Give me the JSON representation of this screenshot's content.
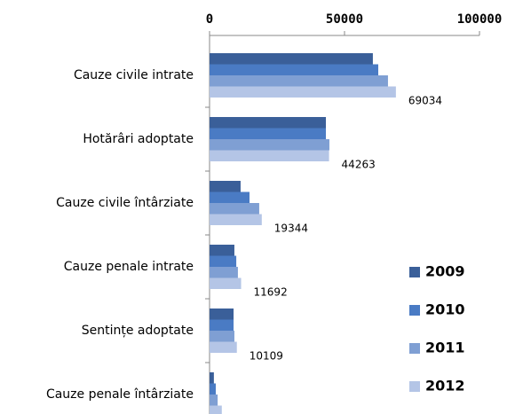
{
  "chart_data": {
    "type": "hbar",
    "categories": [
      "Cauze civile intrate",
      "Hotărâri adoptate",
      "Cauze civile întârziate",
      "Cauze penale intrate",
      "Sentințe adoptate",
      "Cauze penale întârziate"
    ],
    "series": [
      {
        "name": "2009",
        "color": "#3a5f99",
        "values": [
          60500,
          43100,
          11500,
          9200,
          8900,
          1600
        ]
      },
      {
        "name": "2010",
        "color": "#4a7bc4",
        "values": [
          62500,
          43100,
          14800,
          9900,
          8900,
          2300
        ]
      },
      {
        "name": "2011",
        "color": "#7f9fd3",
        "values": [
          66100,
          44400,
          18400,
          10500,
          9200,
          3000
        ]
      },
      {
        "name": "2012",
        "color": "#b4c5e6",
        "values": [
          69034,
          44263,
          19344,
          11692,
          10109,
          4534
        ],
        "data_labels": true
      }
    ],
    "xlim": [
      0,
      100000
    ],
    "xticks": [
      0,
      50000,
      100000
    ],
    "legend": "lower right"
  }
}
